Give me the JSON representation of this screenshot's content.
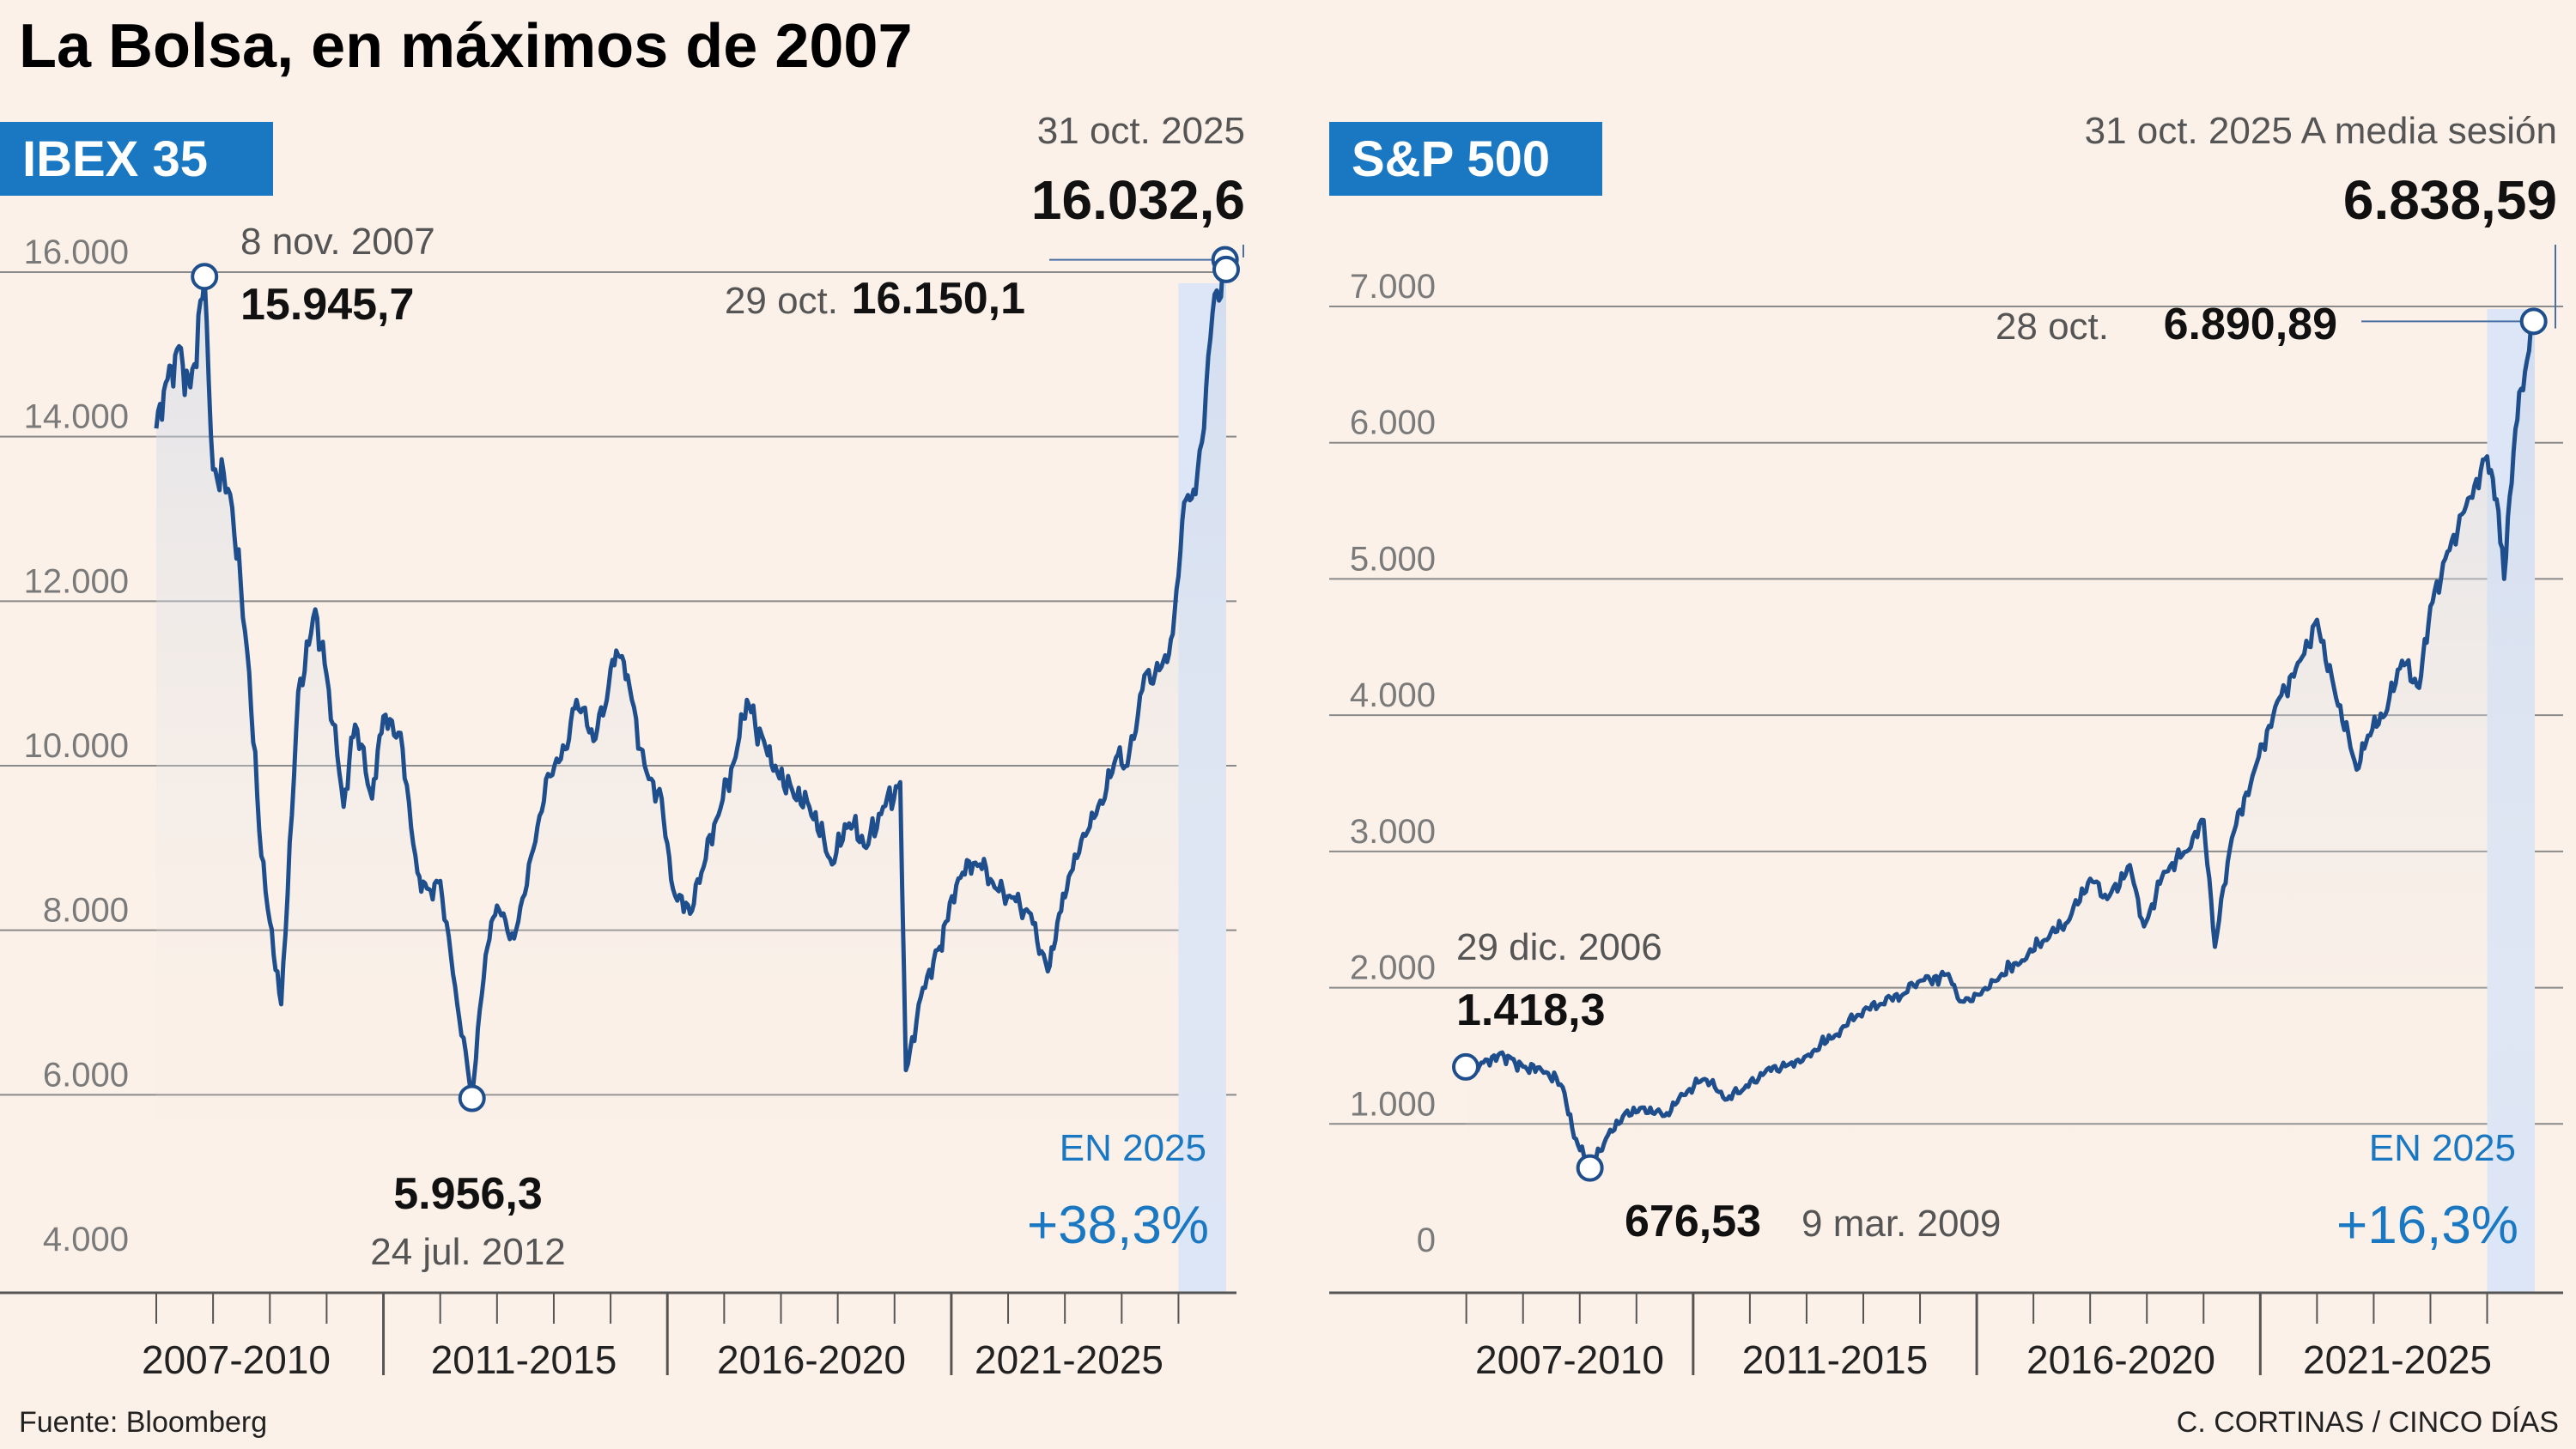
{
  "title": "La Bolsa, en máximos de 2007",
  "footer": {
    "source": "Fuente: Bloomberg",
    "credit": "C. CORTINAS / CINCO DÍAS"
  },
  "colors": {
    "line": "#1f4e8c",
    "accent": "#1a78c2",
    "highlight": "#dce6f6",
    "background": "#fcf1e8"
  },
  "chart_data": [
    {
      "type": "line",
      "name": "IBEX 35",
      "title": "IBEX 35",
      "xrange": [
        2007.0,
        2025.84
      ],
      "ylim": [
        4000,
        16000
      ],
      "yticks": [
        16000,
        14000,
        12000,
        10000,
        8000,
        6000,
        4000
      ],
      "ytick_labels": [
        "16.000",
        "14.000",
        "12.000",
        "10.000",
        "8.000",
        "6.000",
        "4.000"
      ],
      "period_labels": [
        "2007-2010",
        "2011-2015",
        "2016-2020",
        "2021-2025"
      ],
      "x": [
        2007.0,
        2007.2,
        2007.4,
        2007.6,
        2007.85,
        2008.0,
        2008.3,
        2008.6,
        2008.85,
        2009.0,
        2009.2,
        2009.5,
        2009.8,
        2010.0,
        2010.3,
        2010.5,
        2010.8,
        2011.0,
        2011.3,
        2011.6,
        2011.8,
        2012.0,
        2012.3,
        2012.56,
        2012.8,
        2013.0,
        2013.3,
        2013.6,
        2013.9,
        2014.2,
        2014.4,
        2014.7,
        2014.9,
        2015.1,
        2015.3,
        2015.6,
        2015.9,
        2016.1,
        2016.4,
        2016.6,
        2016.9,
        2017.2,
        2017.4,
        2017.7,
        2017.9,
        2018.2,
        2018.5,
        2018.9,
        2019.2,
        2019.5,
        2019.8,
        2020.1,
        2020.2,
        2020.5,
        2020.8,
        2020.9,
        2021.2,
        2021.5,
        2021.8,
        2022.1,
        2022.4,
        2022.7,
        2022.9,
        2023.1,
        2023.4,
        2023.7,
        2023.9,
        2024.1,
        2024.4,
        2024.7,
        2024.9,
        2025.1,
        2025.3,
        2025.45,
        2025.6,
        2025.75,
        2025.82,
        2025.84
      ],
      "values": [
        14100,
        14700,
        15100,
        14600,
        15945.7,
        13600,
        13300,
        11400,
        8900,
        8100,
        7100,
        10900,
        11900,
        11100,
        9500,
        10500,
        9600,
        10600,
        10400,
        8700,
        8500,
        8600,
        7100,
        5956.3,
        7700,
        8300,
        7900,
        8900,
        9900,
        10200,
        10800,
        10300,
        10700,
        11400,
        11100,
        10000,
        9600,
        8500,
        8200,
        8700,
        9400,
        10100,
        10800,
        10300,
        10000,
        9700,
        9500,
        8800,
        9300,
        9000,
        9500,
        9800,
        6300,
        7300,
        7800,
        8100,
        8700,
        8800,
        8500,
        8400,
        8200,
        7500,
        8200,
        8700,
        9200,
        9600,
        10100,
        10000,
        11100,
        11200,
        11600,
        13200,
        13300,
        14100,
        15500,
        15700,
        16150.1,
        16032.6
      ],
      "annotations": {
        "peak": {
          "date": "8 nov. 2007",
          "value": "15.945,7",
          "x": 2007.85,
          "y": 15945.7
        },
        "low": {
          "date": "24 jul. 2012",
          "value": "5.956,3",
          "x": 2012.56,
          "y": 5956.3
        },
        "recent_high": {
          "date": "29 oct.",
          "value": "16.150,1",
          "x": 2025.82,
          "y": 16150.1
        },
        "last": {
          "date": "31 oct. 2025",
          "value": "16.032,6",
          "x": 2025.84,
          "y": 16032.6
        }
      },
      "ytd_label": "EN 2025",
      "ytd_change": "+38,3%",
      "highlight_range": [
        2025.0,
        2025.84
      ]
    },
    {
      "type": "line",
      "name": "S&P 500",
      "title": "S&P 500",
      "xrange": [
        2006.99,
        2025.84
      ],
      "ylim": [
        0,
        7000
      ],
      "yticks": [
        7000,
        6000,
        5000,
        4000,
        3000,
        2000,
        1000,
        0
      ],
      "ytick_labels": [
        "7.000",
        "6.000",
        "5.000",
        "4.000",
        "3.000",
        "2.000",
        "1.000",
        "0"
      ],
      "period_labels": [
        "2007-2010",
        "2011-2015",
        "2016-2020",
        "2021-2025"
      ],
      "x": [
        2006.99,
        2007.3,
        2007.6,
        2007.8,
        2008.0,
        2008.4,
        2008.7,
        2008.9,
        2009.18,
        2009.5,
        2009.8,
        2010.1,
        2010.5,
        2010.9,
        2011.2,
        2011.6,
        2011.9,
        2012.3,
        2012.7,
        2013.0,
        2013.5,
        2013.9,
        2014.3,
        2014.7,
        2015.0,
        2015.5,
        2015.7,
        2016.0,
        2016.3,
        2016.8,
        2017.2,
        2017.6,
        2018.0,
        2018.3,
        2018.7,
        2018.95,
        2019.3,
        2019.7,
        2020.0,
        2020.2,
        2020.5,
        2020.9,
        2021.3,
        2021.7,
        2022.0,
        2022.3,
        2022.7,
        2022.9,
        2023.2,
        2023.5,
        2023.8,
        2024.0,
        2024.3,
        2024.7,
        2025.0,
        2025.2,
        2025.3,
        2025.5,
        2025.7,
        2025.82,
        2025.84
      ],
      "values": [
        1418.3,
        1450,
        1520,
        1480,
        1420,
        1380,
        1270,
        900,
        676.53,
        920,
        1080,
        1120,
        1060,
        1240,
        1330,
        1180,
        1260,
        1400,
        1440,
        1500,
        1650,
        1800,
        1880,
        1950,
        2050,
        2100,
        1900,
        1950,
        2050,
        2200,
        2350,
        2480,
        2800,
        2650,
        2900,
        2450,
        2850,
        3000,
        3230,
        2300,
        3100,
        3600,
        4100,
        4400,
        4700,
        4200,
        3600,
        3850,
        4000,
        4400,
        4200,
        4800,
        5200,
        5600,
        5900,
        5500,
        5000,
        6100,
        6600,
        6890.89,
        6838.59
      ],
      "annotations": {
        "start": {
          "date": "29 dic. 2006",
          "value": "1.418,3",
          "x": 2006.99,
          "y": 1418.3
        },
        "low": {
          "date": "9 mar. 2009",
          "value": "676,53",
          "x": 2009.18,
          "y": 676.53
        },
        "recent_high": {
          "date": "28 oct.",
          "value": "6.890,89",
          "x": 2025.82,
          "y": 6890.89
        },
        "last": {
          "date": "31 oct. 2025 A media sesión",
          "value": "6.838,59",
          "x": 2025.84,
          "y": 6838.59
        }
      },
      "ytd_label": "EN 2025",
      "ytd_change": "+16,3%",
      "highlight_range": [
        2025.0,
        2025.84
      ]
    }
  ]
}
